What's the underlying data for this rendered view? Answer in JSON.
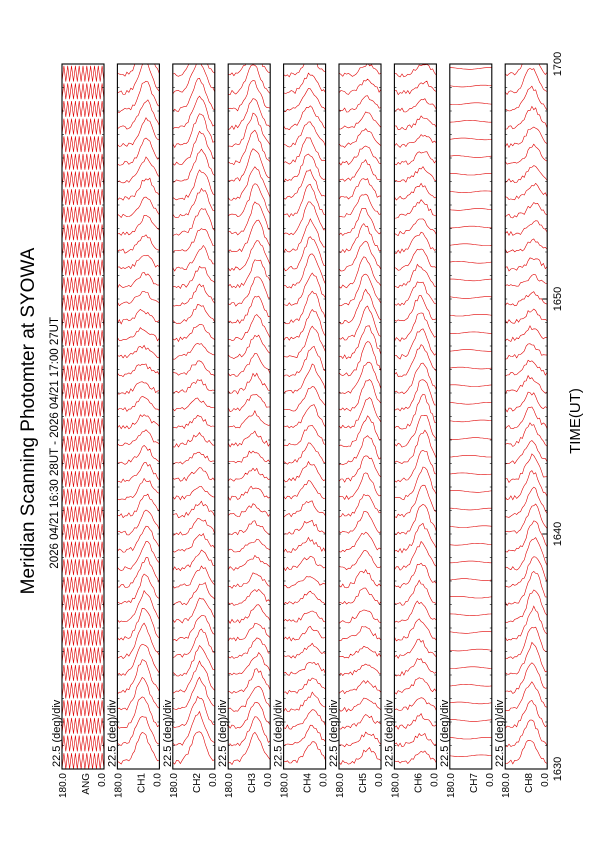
{
  "title": "Meridian Scanning Photomter at SYOWA",
  "time_range": "2026 04/21 16:30 28UT - 2026 04/21 17:00 27UT",
  "xlabel": "TIME(UT)",
  "colors": {
    "trace": "#e00000",
    "frame": "#000000"
  },
  "chart_data": {
    "type": "line",
    "title": "Meridian Scanning Photomter at SYOWA",
    "xlabel": "TIME(UT)",
    "x_ticks": [
      "1630",
      "1640",
      "1650",
      "1700"
    ],
    "xlim": [
      "1630",
      "1700"
    ],
    "ylim": [
      0.0,
      180.0
    ],
    "y_ticks": [
      "180.0",
      "0.0"
    ],
    "scale_label": "22.5 (deg)/div",
    "grid": false,
    "panels": [
      {
        "channel": "ANG",
        "scale": "22.5 (deg)/div",
        "kind": "angle"
      },
      {
        "channel": "CH1",
        "scale": "22.5 (deg)/div",
        "kind": "scan"
      },
      {
        "channel": "CH2",
        "scale": "22.5 (deg)/div",
        "kind": "scan"
      },
      {
        "channel": "CH3",
        "scale": "22.5 (deg)/div",
        "kind": "scan"
      },
      {
        "channel": "CH4",
        "scale": "22.5 (deg)/div",
        "kind": "scan"
      },
      {
        "channel": "CH5",
        "scale": "22.5 (deg)/div",
        "kind": "scan"
      },
      {
        "channel": "CH6",
        "scale": "22.5 (deg)/div",
        "kind": "scan"
      },
      {
        "channel": "CH7",
        "scale": "22.5 (deg)/div",
        "kind": "flat"
      },
      {
        "channel": "CH8",
        "scale": "22.5 (deg)/div",
        "kind": "scan"
      }
    ]
  }
}
